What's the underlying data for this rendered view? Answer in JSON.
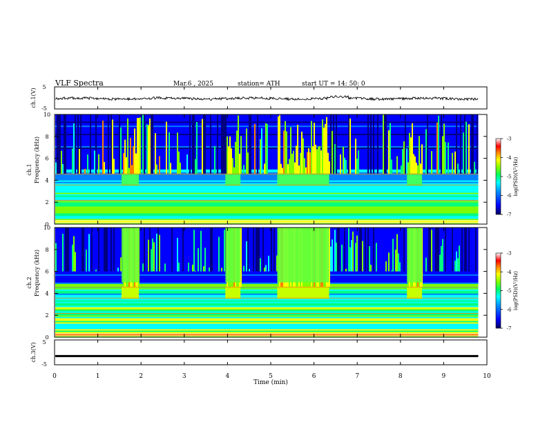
{
  "header": {
    "title": "VLF  Spectra",
    "date": "Mar.6  , 2025",
    "station": "station= ATH",
    "start_ut": "start  UT  =   14: 50: 0"
  },
  "chart_data": {
    "type": "heatmap",
    "time_axis": {
      "label": "Time  (min)",
      "range": [
        0,
        10
      ],
      "ticks": [
        "0",
        "1",
        "2",
        "3",
        "4",
        "5",
        "6",
        "7",
        "8",
        "9",
        "10"
      ],
      "data_end": 9.8
    },
    "panels": [
      {
        "id": "ch1-waveform",
        "type": "line",
        "ylabel": "ch.1(V)",
        "ylim": [
          -5,
          5
        ],
        "tick_labels": [
          "5",
          "-5"
        ]
      },
      {
        "id": "ch1-spectrogram",
        "type": "heatmap",
        "ylabel": "ch.1\nFrequency  (kHz)",
        "ylim": [
          0,
          10
        ],
        "tick_labels": [
          "0",
          "2",
          "4",
          "6",
          "8",
          "10"
        ],
        "bright_intervals_min": [
          [
            1.55,
            1.95
          ],
          [
            3.95,
            4.3
          ],
          [
            5.15,
            6.35
          ],
          [
            8.15,
            8.5
          ]
        ],
        "colorbar": {
          "label": "log(PSD)(V²/Hz)",
          "range": [
            -7,
            -3
          ],
          "tick_labels": [
            "-3",
            "-4",
            "-5",
            "-6",
            "-7"
          ]
        }
      },
      {
        "id": "ch2-spectrogram",
        "type": "heatmap",
        "ylabel": "ch.2\nFrequency  (kHz)",
        "ylim": [
          0,
          10
        ],
        "tick_labels": [
          "0",
          "2",
          "4",
          "6",
          "8",
          "10"
        ],
        "bright_intervals_min": [
          [
            1.55,
            1.95
          ],
          [
            3.95,
            4.3
          ],
          [
            5.15,
            6.35
          ],
          [
            8.15,
            8.5
          ]
        ],
        "colorbar": {
          "label": "log(PSD)(V²/Hz)",
          "range": [
            -7,
            -3
          ],
          "tick_labels": [
            "-3",
            "-4",
            "-5",
            "-6",
            "-7"
          ]
        }
      },
      {
        "id": "ch3-waveform",
        "type": "line",
        "ylabel": "ch.3(V)",
        "ylim": [
          -5,
          5
        ],
        "tick_labels": [
          "5",
          "-5"
        ],
        "level": -1.5
      }
    ],
    "colormap": [
      "#000080",
      "#0000ff",
      "#0080ff",
      "#00ffff",
      "#00ff80",
      "#80ff00",
      "#ffff00",
      "#ff8000",
      "#ff0000",
      "#ffffff"
    ]
  }
}
